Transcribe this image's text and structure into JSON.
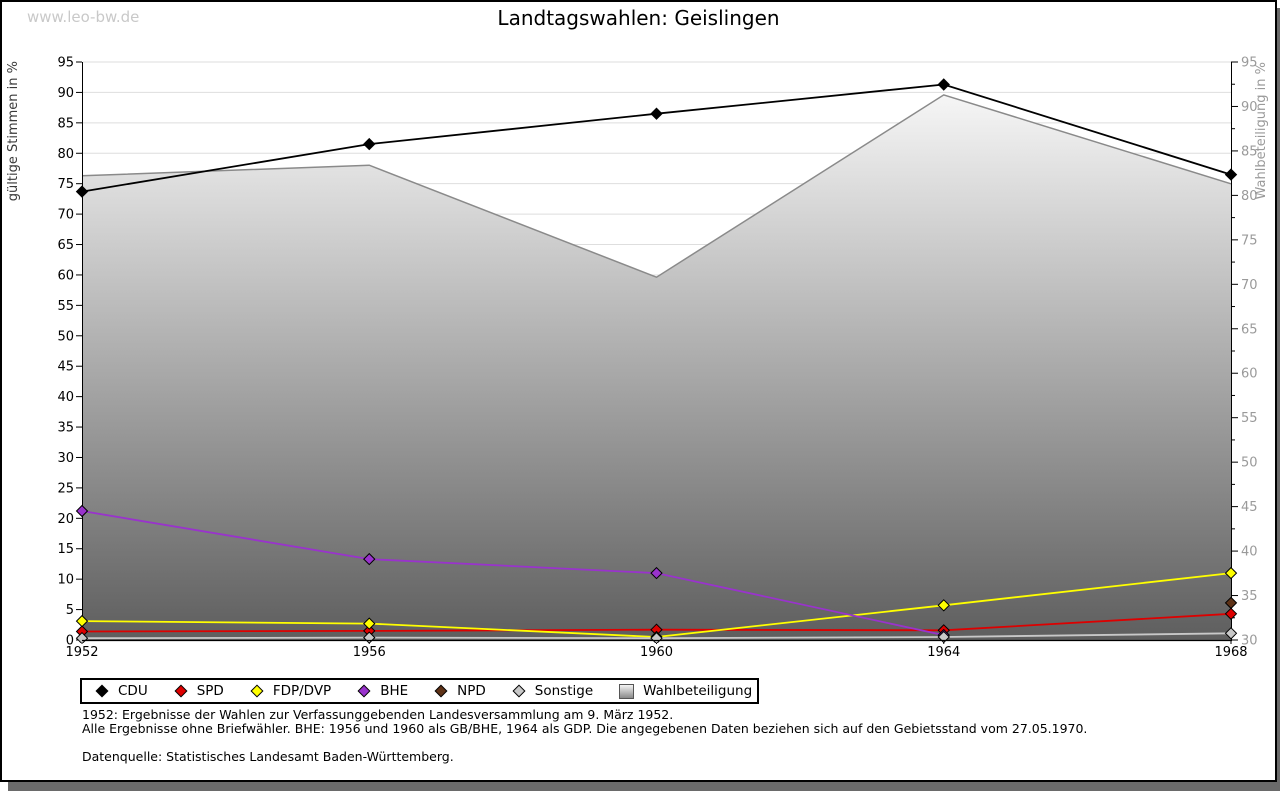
{
  "watermark": "www.leo-bw.de",
  "title": "Landtagswahlen: Geislingen",
  "chart_data": {
    "type": "line",
    "categories": [
      "1952",
      "1956",
      "1960",
      "1964",
      "1968"
    ],
    "left_axis": {
      "label": "gültige Stimmen in %",
      "min": 0,
      "max": 95,
      "step": 5
    },
    "right_axis": {
      "label": "Wahlbeteiligung in %",
      "min": 30,
      "max": 95,
      "step": 5
    },
    "grid": true,
    "legend_position": "bottom",
    "series": [
      {
        "name": "CDU",
        "axis": "left",
        "kind": "line",
        "color": "#000000",
        "values": [
          73.7,
          81.5,
          86.5,
          91.3,
          76.5
        ]
      },
      {
        "name": "SPD",
        "axis": "left",
        "kind": "line",
        "color": "#dd0000",
        "values": [
          1.4,
          1.5,
          1.7,
          1.6,
          4.3
        ]
      },
      {
        "name": "FDP/DVP",
        "axis": "left",
        "kind": "line",
        "color": "#ffff00",
        "values": [
          3.1,
          2.7,
          0.5,
          5.7,
          11.0
        ]
      },
      {
        "name": "BHE",
        "axis": "left",
        "kind": "line",
        "color": "#9933cc",
        "values": [
          21.2,
          13.3,
          11.0,
          0.8,
          null
        ]
      },
      {
        "name": "NPD",
        "axis": "left",
        "kind": "line",
        "color": "#5e3217",
        "values": [
          null,
          null,
          null,
          null,
          6.1
        ]
      },
      {
        "name": "Sonstige",
        "axis": "left",
        "kind": "line",
        "color": "#c8c8c8",
        "values": [
          0.3,
          0.4,
          0.3,
          0.5,
          1.1
        ]
      },
      {
        "name": "Wahlbeteiligung",
        "axis": "right",
        "kind": "area",
        "color": "#8a8a8a",
        "fill_top": "#ffffff",
        "fill_bottom": "#5e5e5e",
        "values": [
          82.2,
          83.4,
          70.8,
          91.3,
          81.3
        ]
      }
    ]
  },
  "footnotes": {
    "line1": "1952: Ergebnisse der Wahlen zur Verfassunggebenden Landesversammlung am 9. März 1952.",
    "line2": "Alle Ergebnisse ohne Briefwähler. BHE: 1956 und 1960 als GB/BHE, 1964 als GDP. Die angegebenen Daten beziehen sich auf den Gebietsstand vom 27.05.1970.",
    "source": "Datenquelle: Statistisches Landesamt Baden-Württemberg."
  },
  "colors": {
    "grid": "#dedede",
    "axis": "#000000",
    "right_axis_text": "#9a9a9a",
    "left_axis_title": "#3a3a3a",
    "watermark": "#c9c9c9",
    "shadow": "#6a6a6a"
  }
}
